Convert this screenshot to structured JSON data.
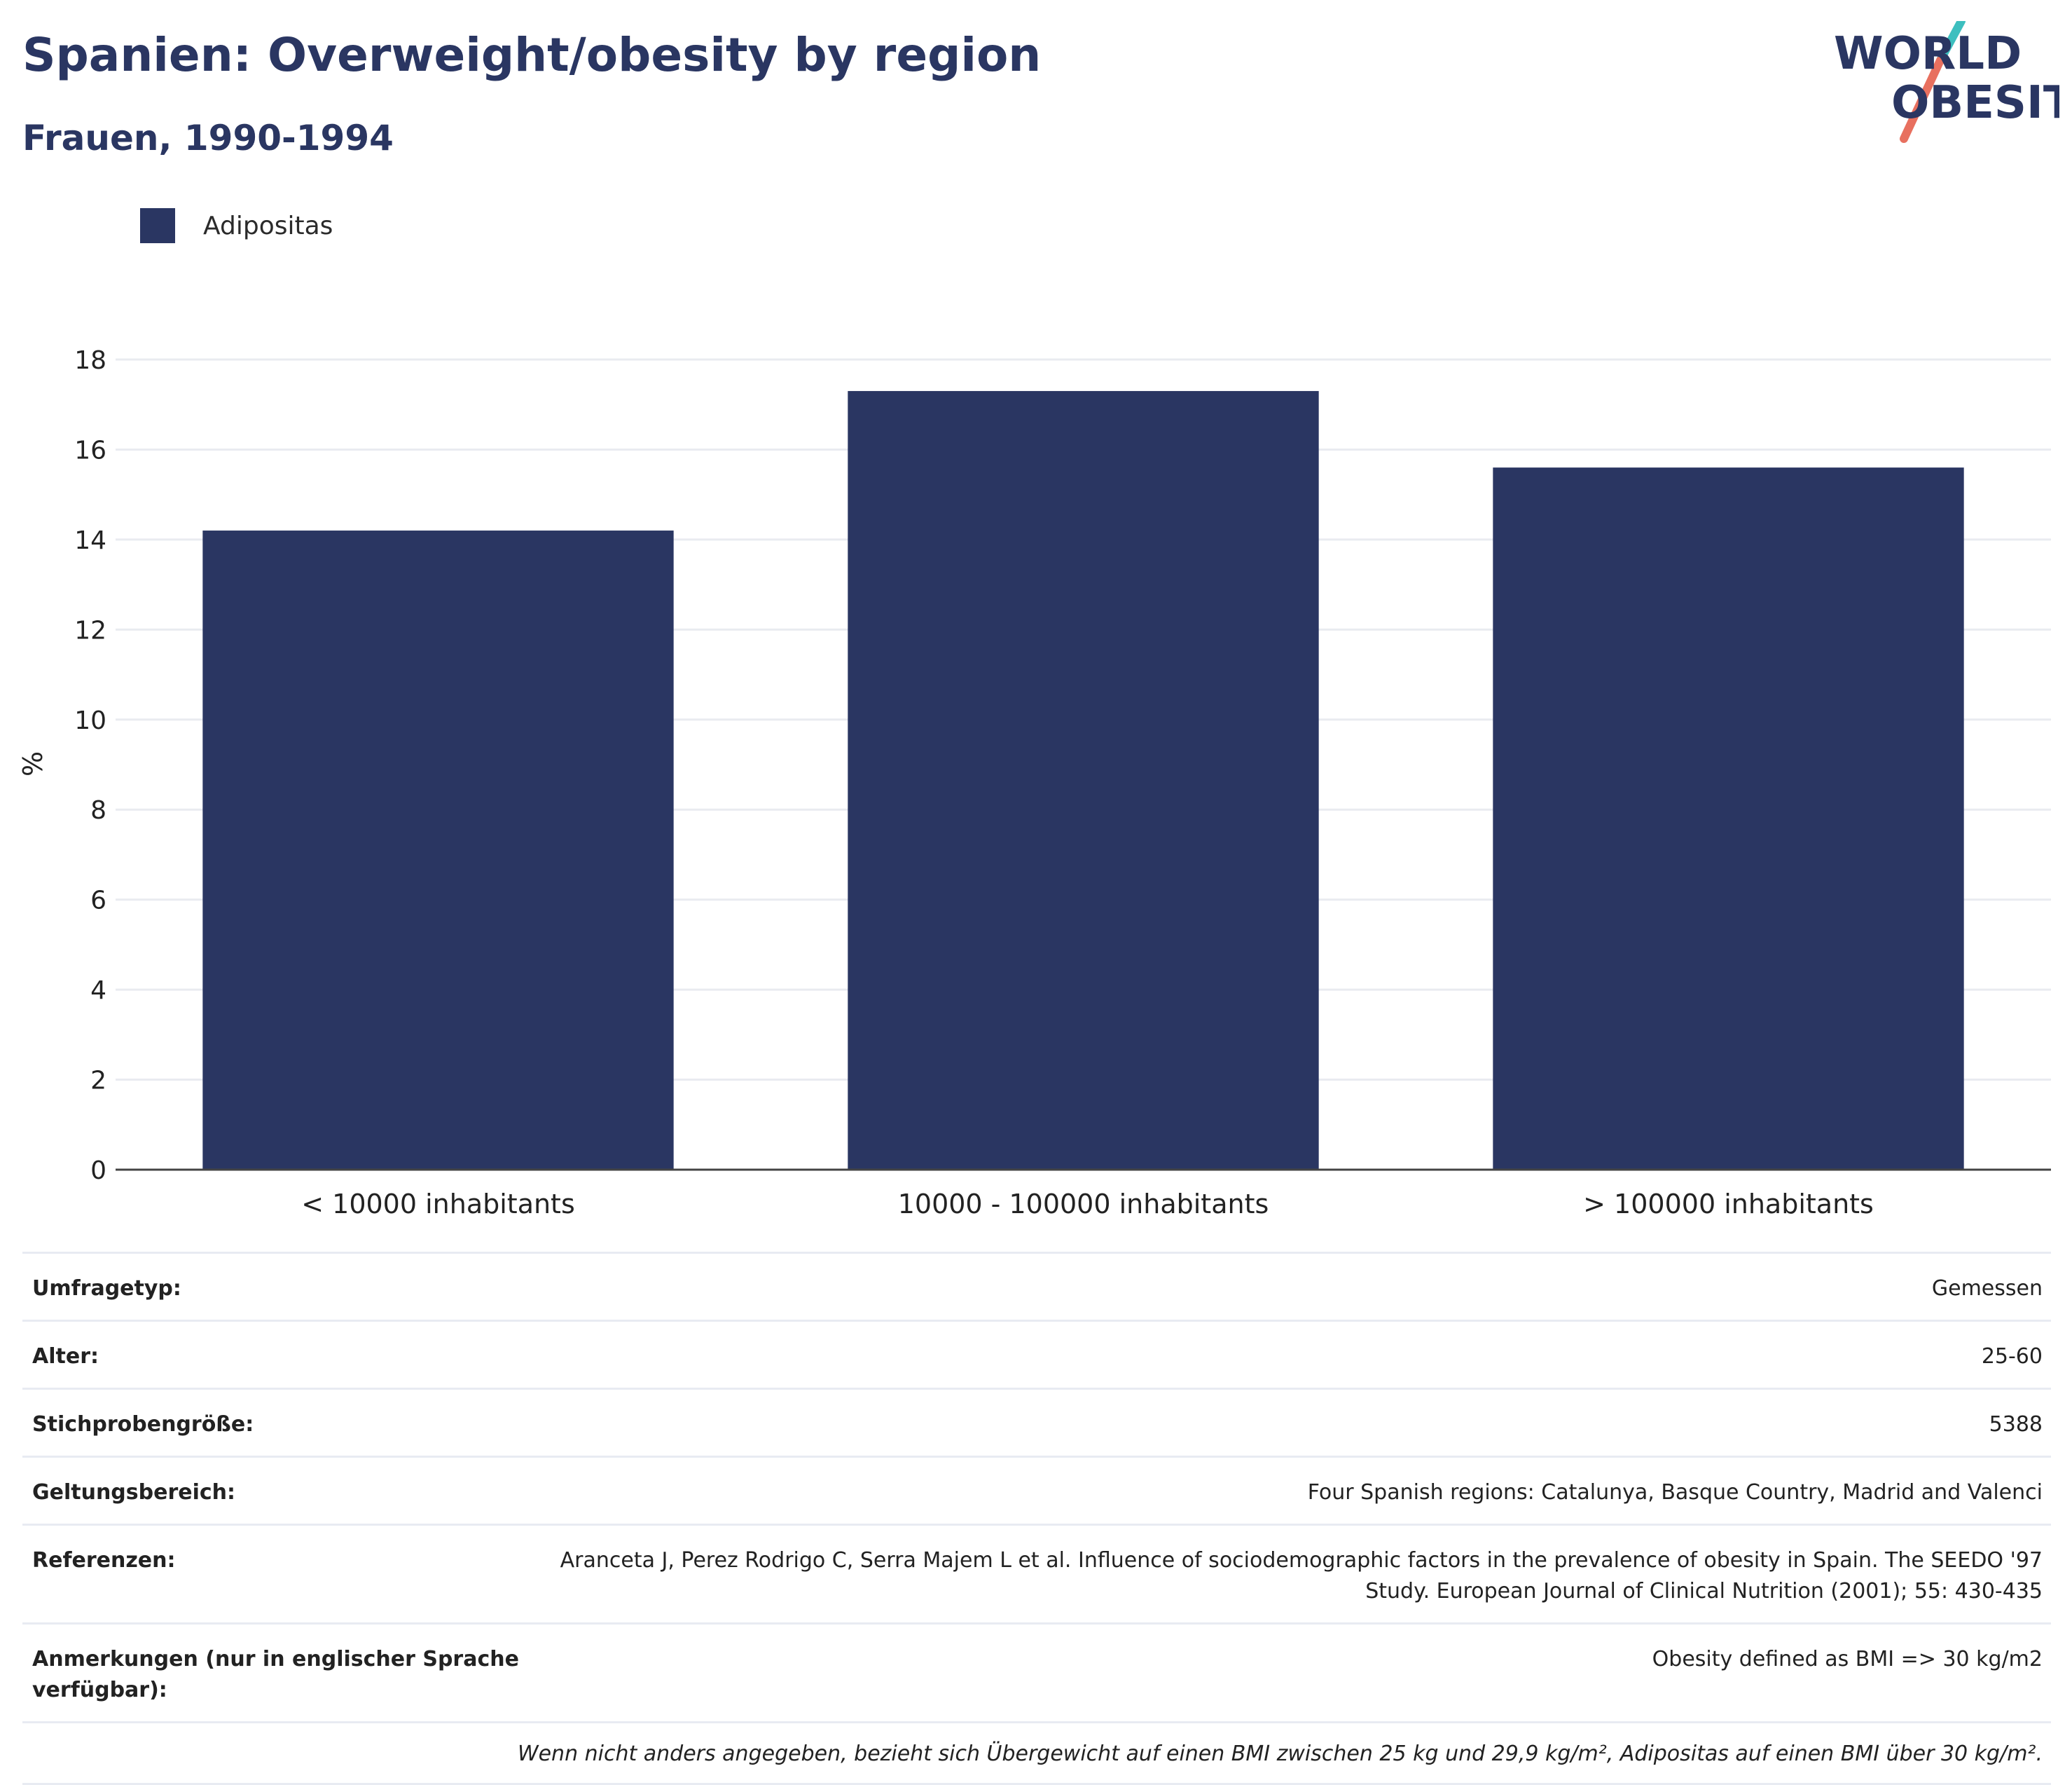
{
  "header": {
    "title": "Spanien: Overweight/obesity by region",
    "subtitle": "Frauen, 1990-1994"
  },
  "logo": {
    "line1": "WORLD",
    "line2": "OBESITY"
  },
  "legend": {
    "items": [
      {
        "label": "Adipositas",
        "color": "#2a3662"
      }
    ]
  },
  "chart_data": {
    "type": "bar",
    "categories": [
      "< 10000 inhabitants",
      "10000 - 100000 inhabitants",
      "> 100000 inhabitants"
    ],
    "series": [
      {
        "name": "Adipositas",
        "values": [
          14.2,
          17.3,
          15.6
        ],
        "color": "#2a3662"
      }
    ],
    "ylabel": "%",
    "ylim": [
      0,
      18
    ],
    "yticks": [
      0,
      2,
      4,
      6,
      8,
      10,
      12,
      14,
      16,
      18
    ],
    "grid": true
  },
  "meta": {
    "rows": [
      {
        "key": "Umfragetyp:",
        "value": "Gemessen"
      },
      {
        "key": "Alter:",
        "value": "25-60"
      },
      {
        "key": "Stichprobengröße:",
        "value": "5388"
      },
      {
        "key": "Geltungsbereich:",
        "value": "Four Spanish regions: Catalunya, Basque Country, Madrid and Valenci"
      },
      {
        "key": "Referenzen:",
        "value": "Aranceta J, Perez Rodrigo C, Serra Majem L et al. Influence of sociodemographic factors in the prevalence of obesity in Spain. The SEEDO '97 Study. European Journal of Clinical Nutrition (2001); 55: 430-435"
      },
      {
        "key": "Anmerkungen (nur in englischer Sprache verfügbar):",
        "value": "Obesity defined as BMI => 30 kg/m2"
      }
    ],
    "note": "Wenn nicht anders angegeben, bezieht sich Übergewicht auf einen BMI zwischen 25 kg und 29,9 kg/m², Adipositas auf einen BMI über 30 kg/m²."
  }
}
